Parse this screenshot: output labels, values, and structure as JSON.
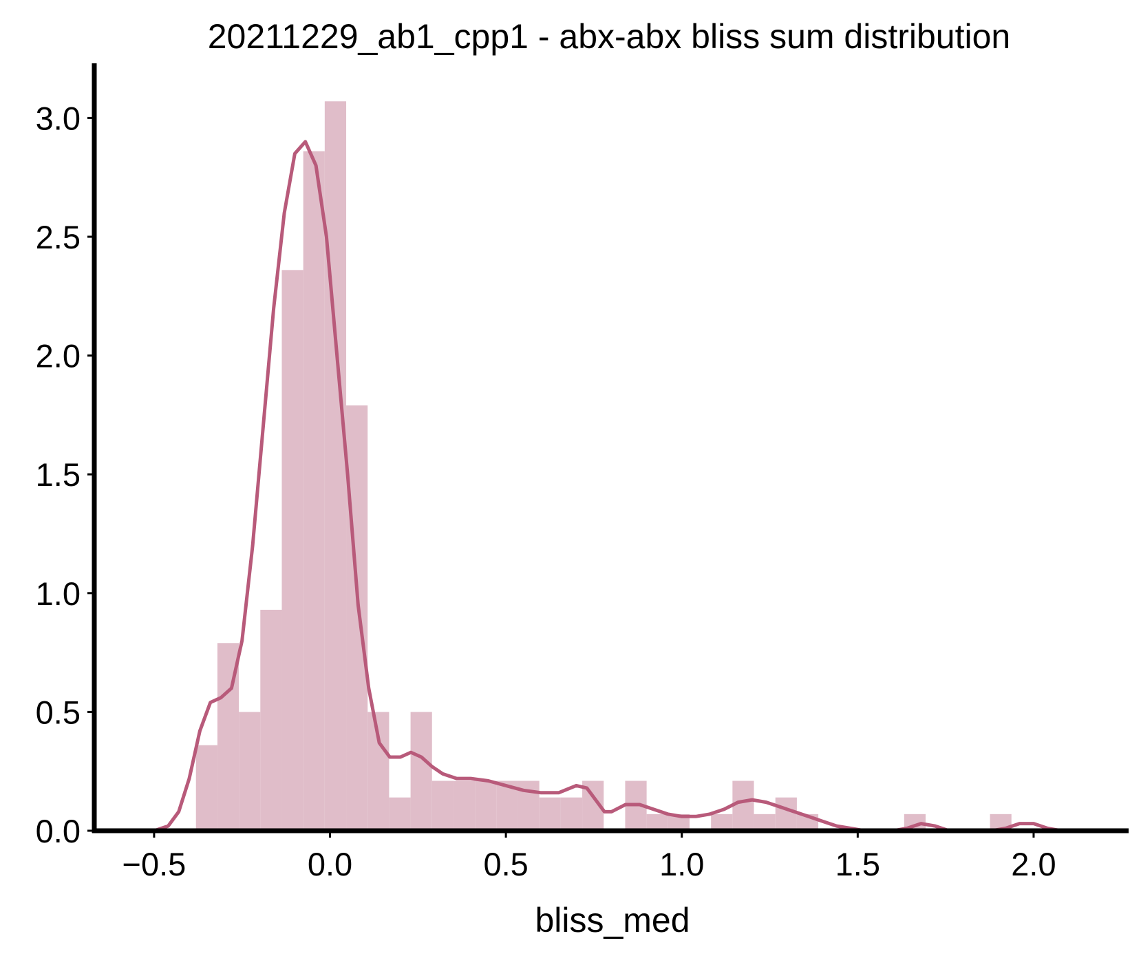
{
  "chart_data": {
    "type": "histogram",
    "title": "20211229_ab1_cpp1 - abx-abx bliss sum distribution",
    "xlabel": "bliss_med",
    "ylabel": "",
    "xlim": [
      -0.67,
      2.27
    ],
    "ylim": [
      0,
      3.23
    ],
    "xticks": [
      -0.5,
      0.0,
      0.5,
      1.0,
      1.5,
      2.0
    ],
    "xtick_labels": [
      "−0.5",
      "0.0",
      "0.5",
      "1.0",
      "1.5",
      "2.0"
    ],
    "yticks": [
      0.0,
      0.5,
      1.0,
      1.5,
      2.0,
      2.5,
      3.0
    ],
    "ytick_labels": [
      "0.0",
      "0.5",
      "1.0",
      "1.5",
      "2.0",
      "2.5",
      "3.0"
    ],
    "grid": false,
    "legend": false,
    "colors": {
      "bar": "#e0bdc9",
      "kde": "#b85a7a",
      "axis": "#000000"
    },
    "bin_width": 0.061,
    "bins": [
      {
        "x0": -0.381,
        "h": 0.36
      },
      {
        "x0": -0.32,
        "h": 0.79
      },
      {
        "x0": -0.259,
        "h": 0.5
      },
      {
        "x0": -0.198,
        "h": 0.93
      },
      {
        "x0": -0.137,
        "h": 2.36
      },
      {
        "x0": -0.076,
        "h": 2.86
      },
      {
        "x0": -0.015,
        "h": 3.07
      },
      {
        "x0": 0.046,
        "h": 1.79
      },
      {
        "x0": 0.107,
        "h": 0.5
      },
      {
        "x0": 0.168,
        "h": 0.14
      },
      {
        "x0": 0.229,
        "h": 0.5
      },
      {
        "x0": 0.29,
        "h": 0.21
      },
      {
        "x0": 0.351,
        "h": 0.21
      },
      {
        "x0": 0.412,
        "h": 0.21
      },
      {
        "x0": 0.473,
        "h": 0.21
      },
      {
        "x0": 0.534,
        "h": 0.21
      },
      {
        "x0": 0.595,
        "h": 0.14
      },
      {
        "x0": 0.656,
        "h": 0.14
      },
      {
        "x0": 0.717,
        "h": 0.21
      },
      {
        "x0": 0.778,
        "h": 0.0
      },
      {
        "x0": 0.839,
        "h": 0.21
      },
      {
        "x0": 0.9,
        "h": 0.07
      },
      {
        "x0": 0.961,
        "h": 0.07
      },
      {
        "x0": 1.022,
        "h": 0.0
      },
      {
        "x0": 1.083,
        "h": 0.07
      },
      {
        "x0": 1.144,
        "h": 0.21
      },
      {
        "x0": 1.205,
        "h": 0.07
      },
      {
        "x0": 1.266,
        "h": 0.14
      },
      {
        "x0": 1.327,
        "h": 0.07
      },
      {
        "x0": 1.388,
        "h": 0.0
      },
      {
        "x0": 1.449,
        "h": 0.0
      },
      {
        "x0": 1.51,
        "h": 0.0
      },
      {
        "x0": 1.571,
        "h": 0.0
      },
      {
        "x0": 1.632,
        "h": 0.07
      },
      {
        "x0": 1.693,
        "h": 0.0
      },
      {
        "x0": 1.754,
        "h": 0.0
      },
      {
        "x0": 1.815,
        "h": 0.0
      },
      {
        "x0": 1.876,
        "h": 0.07
      },
      {
        "x0": 1.937,
        "h": 0.0
      }
    ],
    "kde": {
      "name": "",
      "x": [
        -0.5,
        -0.46,
        -0.43,
        -0.4,
        -0.37,
        -0.34,
        -0.31,
        -0.28,
        -0.25,
        -0.22,
        -0.19,
        -0.16,
        -0.13,
        -0.1,
        -0.07,
        -0.04,
        -0.01,
        0.02,
        0.05,
        0.08,
        0.11,
        0.14,
        0.17,
        0.2,
        0.23,
        0.26,
        0.29,
        0.32,
        0.36,
        0.4,
        0.45,
        0.5,
        0.55,
        0.6,
        0.65,
        0.7,
        0.73,
        0.76,
        0.78,
        0.8,
        0.84,
        0.88,
        0.92,
        0.96,
        1.0,
        1.04,
        1.08,
        1.12,
        1.16,
        1.2,
        1.24,
        1.28,
        1.32,
        1.36,
        1.4,
        1.44,
        1.48,
        1.52,
        1.56,
        1.6,
        1.64,
        1.68,
        1.72,
        1.76,
        1.8,
        1.84,
        1.88,
        1.92,
        1.96,
        2.0,
        2.04,
        2.08
      ],
      "y": [
        0.0,
        0.02,
        0.08,
        0.22,
        0.42,
        0.54,
        0.56,
        0.6,
        0.8,
        1.2,
        1.7,
        2.2,
        2.6,
        2.85,
        2.9,
        2.8,
        2.5,
        2.0,
        1.5,
        0.95,
        0.6,
        0.37,
        0.31,
        0.31,
        0.33,
        0.31,
        0.27,
        0.24,
        0.22,
        0.22,
        0.21,
        0.19,
        0.17,
        0.16,
        0.16,
        0.19,
        0.18,
        0.12,
        0.08,
        0.08,
        0.11,
        0.11,
        0.09,
        0.07,
        0.06,
        0.06,
        0.07,
        0.09,
        0.12,
        0.13,
        0.12,
        0.1,
        0.08,
        0.06,
        0.04,
        0.02,
        0.01,
        0.0,
        0.0,
        0.0,
        0.01,
        0.03,
        0.02,
        0.0,
        0.0,
        0.0,
        0.0,
        0.01,
        0.03,
        0.03,
        0.01,
        0.0
      ]
    }
  }
}
